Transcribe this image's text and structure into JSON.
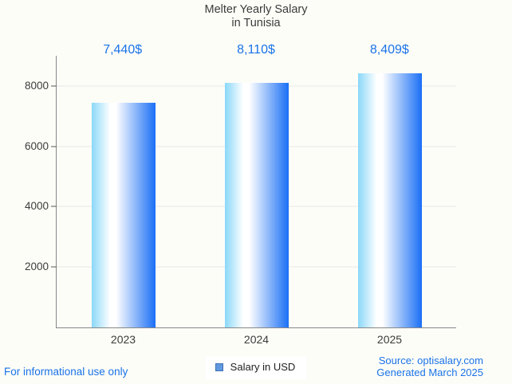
{
  "page": {
    "background": "#fdfdf8"
  },
  "title": {
    "line1": "Melter Yearly Salary",
    "line2": "in Tunisia"
  },
  "chart_data": {
    "type": "bar",
    "title": "Melter Yearly Salary in Tunisia",
    "categories": [
      "2023",
      "2024",
      "2025"
    ],
    "series": [
      {
        "name": "Salary in USD",
        "values": [
          7440,
          8110,
          8409
        ]
      }
    ],
    "value_labels": [
      "7,440$",
      "8,110$",
      "8,409$"
    ],
    "xlabel": "",
    "ylabel": "",
    "ylim": [
      0,
      9000
    ],
    "yticks": [
      2000,
      4000,
      6000,
      8000
    ],
    "grid": true,
    "legend_position": "bottom"
  },
  "legend": {
    "label": "Salary in USD"
  },
  "footer": {
    "left_note": "For informational use only",
    "source_line": "Source: optisalary.com",
    "generated_line": "Generated March 2025"
  },
  "colors": {
    "accent_blue": "#1a73e8",
    "bar_gradient_left": "#8ad8f9",
    "bar_gradient_mid": "#ffffff",
    "bar_gradient_right": "#1a6ff5",
    "gridline": "#e7e7e7",
    "axis": "#878787",
    "tick_mark": "#555555",
    "text_dark": "#3b3b3b",
    "legend_swatch_fill": "#6099e0",
    "legend_swatch_border": "#3d6fb4",
    "legend_text": "#1f1f1f",
    "legend_background": "#ffffff"
  }
}
